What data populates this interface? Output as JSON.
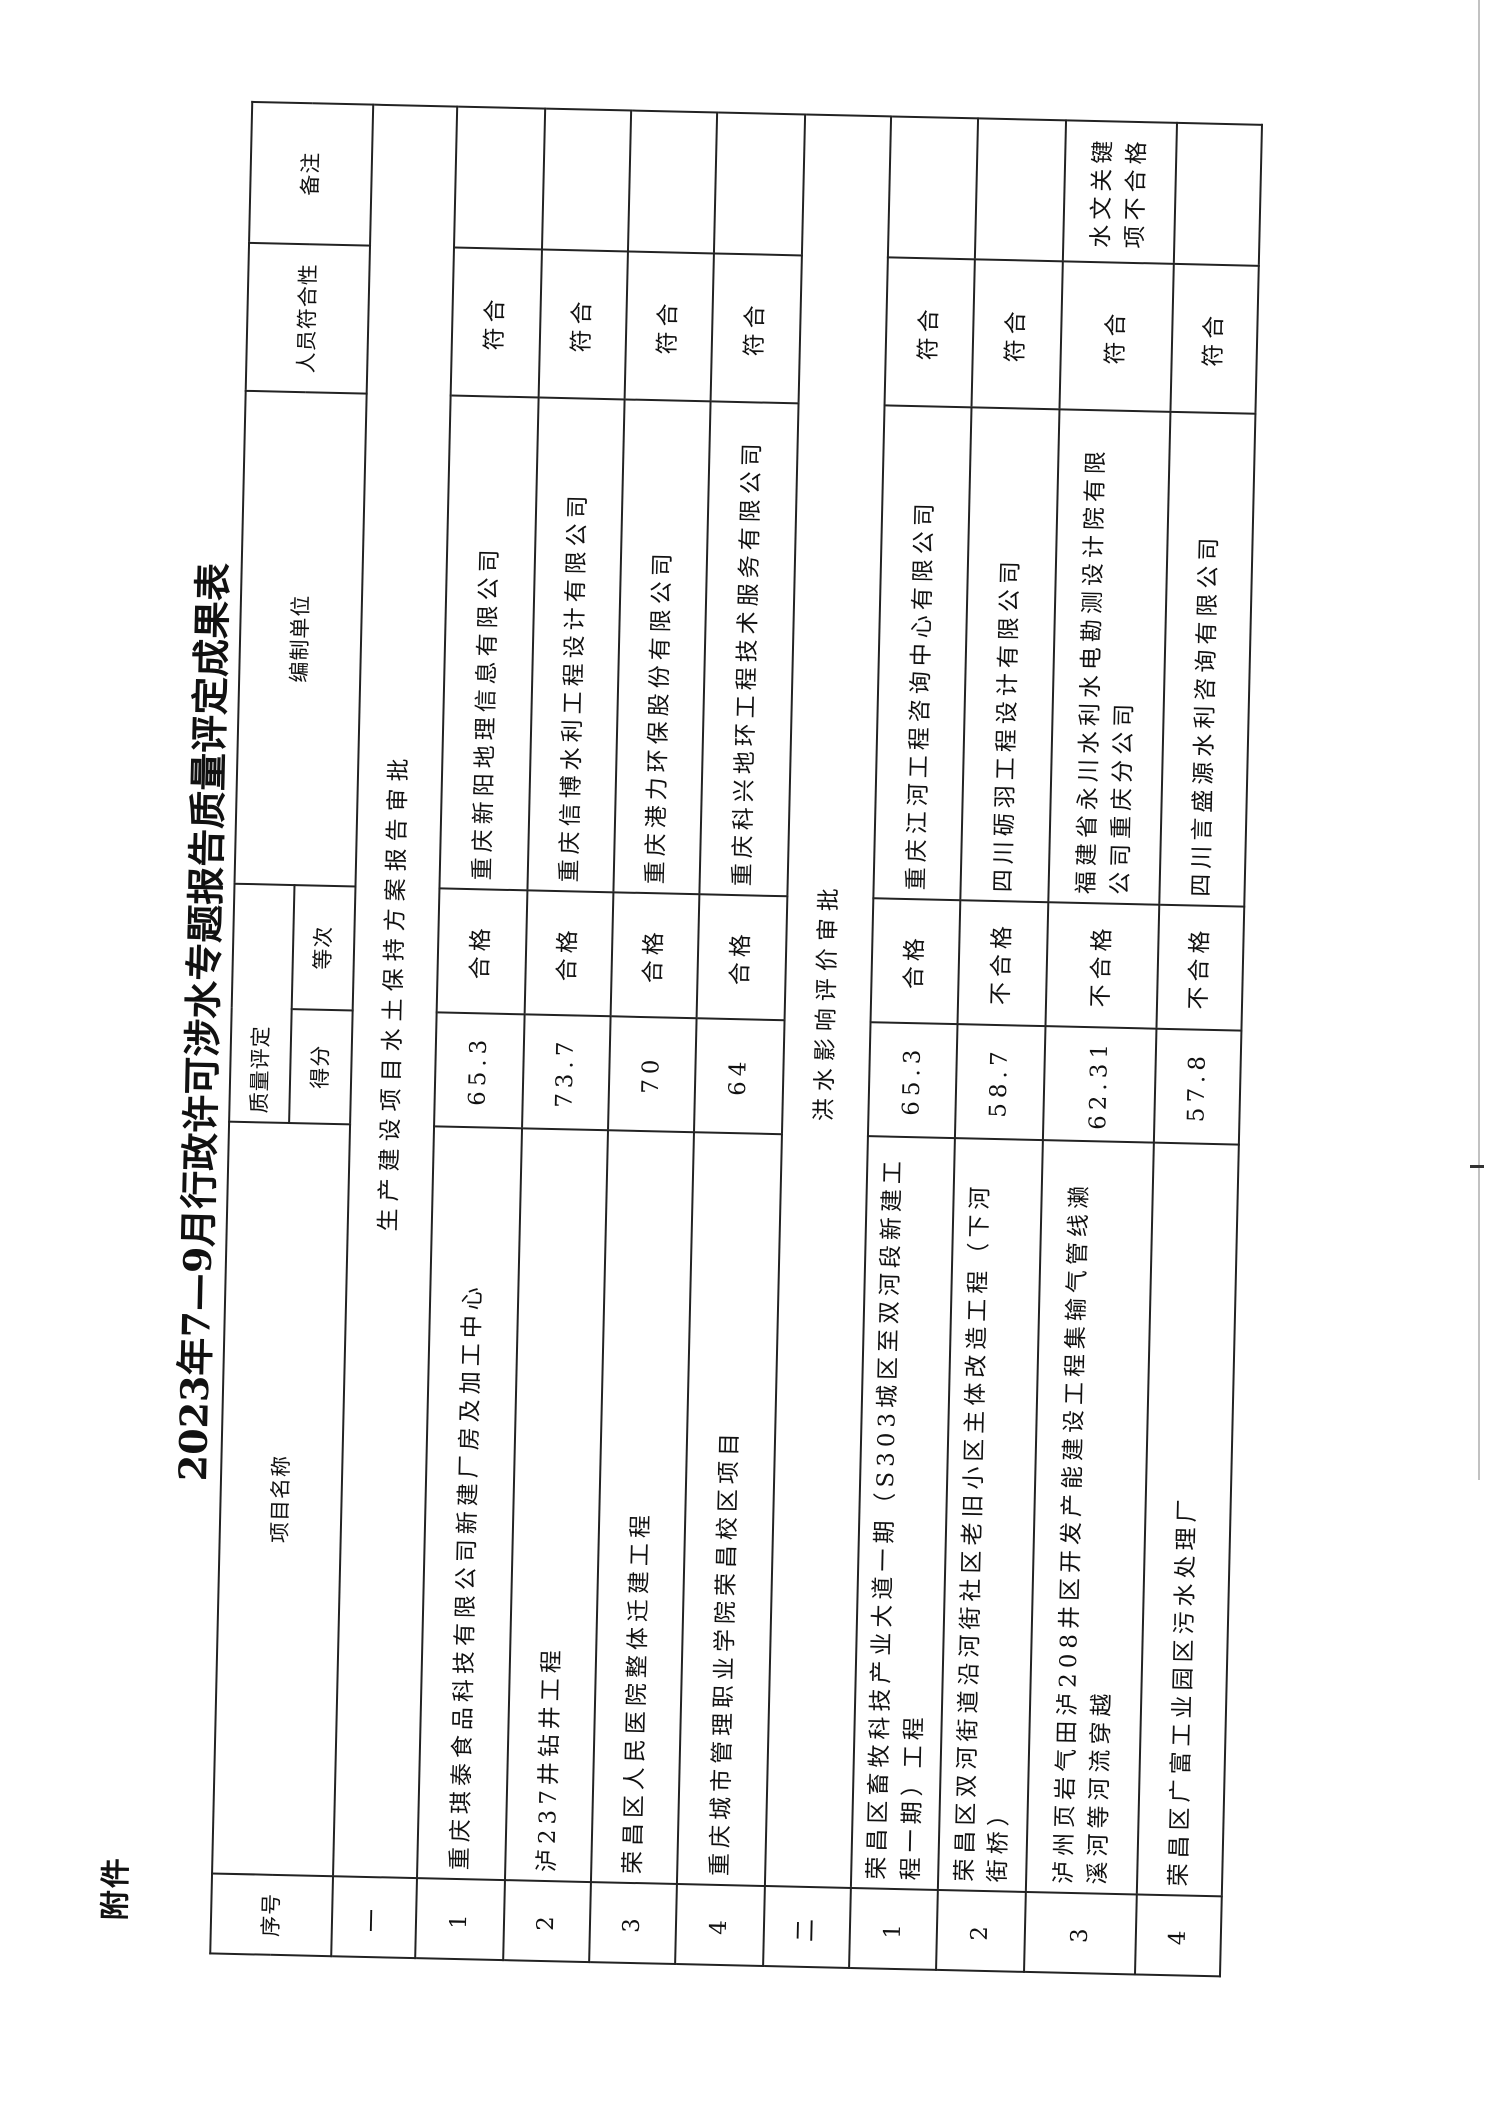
{
  "annex_label": "附件",
  "title": "2023年7—9月行政许可涉水专题报告质量评定成果表",
  "headers": {
    "index": "序号",
    "project": "项目名称",
    "quality": "质量评定",
    "score": "得分",
    "grade": "等次",
    "unit": "编制单位",
    "staff": "人员符合性",
    "remark": "备注"
  },
  "sections": [
    {
      "index": "一",
      "title": "生产建设项目水土保持方案报告审批",
      "rows": [
        {
          "index": "1",
          "project": "重庆琪泰食品科技有限公司新建厂房及加工中心",
          "score": "65.3",
          "grade": "合格",
          "unit": "重庆新阳地理信息有限公司",
          "staff": "符合",
          "remark": ""
        },
        {
          "index": "2",
          "project": "泸237井钻井工程",
          "score": "73.7",
          "grade": "合格",
          "unit": "重庆信博水利工程设计有限公司",
          "staff": "符合",
          "remark": ""
        },
        {
          "index": "3",
          "project": "荣昌区人民医院整体迁建工程",
          "score": "70",
          "grade": "合格",
          "unit": "重庆港力环保股份有限公司",
          "staff": "符合",
          "remark": ""
        },
        {
          "index": "4",
          "project": "重庆城市管理职业学院荣昌校区项目",
          "score": "64",
          "grade": "合格",
          "unit": "重庆科兴地环工程技术服务有限公司",
          "staff": "符合",
          "remark": ""
        }
      ]
    },
    {
      "index": "二",
      "title": "洪水影响评价审批",
      "rows": [
        {
          "index": "1",
          "project": "荣昌区畜牧科技产业大道一期（S303城区至双河段新建工\n程一期）工程",
          "score": "65.3",
          "grade": "合格",
          "unit": "重庆江河工程咨询中心有限公司",
          "staff": "符合",
          "remark": ""
        },
        {
          "index": "2",
          "project": "荣昌区双河街道沿河街社区老旧小区主体改造工程（下河\n街桥）",
          "score": "58.7",
          "grade": "不合格",
          "unit": "四川砺羽工程设计有限公司",
          "staff": "符合",
          "remark": ""
        },
        {
          "index": "3",
          "project": "泸州页岩气田泸208井区开发产能建设工程集输气管线濑\n溪河等河流穿越",
          "score": "62.31",
          "grade": "不合格",
          "unit": "福建省永川水利水电勘测设计院有限\n公司重庆分公司",
          "staff": "符合",
          "remark": "水文关键\n项不合格"
        },
        {
          "index": "4",
          "project": "荣昌区广富工业园区污水处理厂",
          "score": "57.8",
          "grade": "不合格",
          "unit": "四川言盛源水利咨询有限公司",
          "staff": "符合",
          "remark": ""
        }
      ]
    }
  ]
}
